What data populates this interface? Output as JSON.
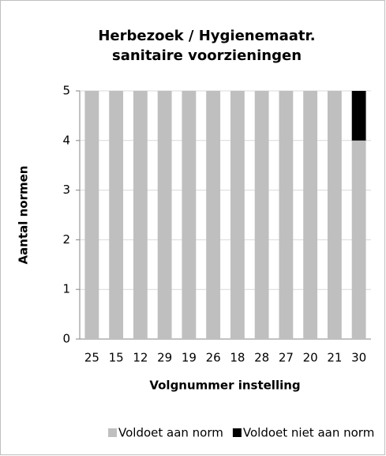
{
  "chart_data": {
    "type": "bar",
    "stacked": true,
    "title": [
      "Herbezoek / Hygienemaatr.",
      "sanitaire voorzieningen"
    ],
    "x_label": "Volgnummer  instelling",
    "y_label": "Aantal normen",
    "categories": [
      "25",
      "15",
      "12",
      "29",
      "19",
      "26",
      "18",
      "28",
      "27",
      "20",
      "21",
      "30"
    ],
    "series": [
      {
        "name": "Voldoet aan norm",
        "color": "#bfbfbf",
        "values": [
          5,
          5,
          5,
          5,
          5,
          5,
          5,
          5,
          5,
          5,
          5,
          4
        ]
      },
      {
        "name": "Voldoet niet aan norm",
        "color": "#000000",
        "values": [
          0,
          0,
          0,
          0,
          0,
          0,
          0,
          0,
          0,
          0,
          0,
          1
        ]
      }
    ],
    "ylim": [
      0,
      5
    ],
    "yticks": [
      0,
      1,
      2,
      3,
      4,
      5
    ],
    "grid": true,
    "legend": "bottom"
  }
}
